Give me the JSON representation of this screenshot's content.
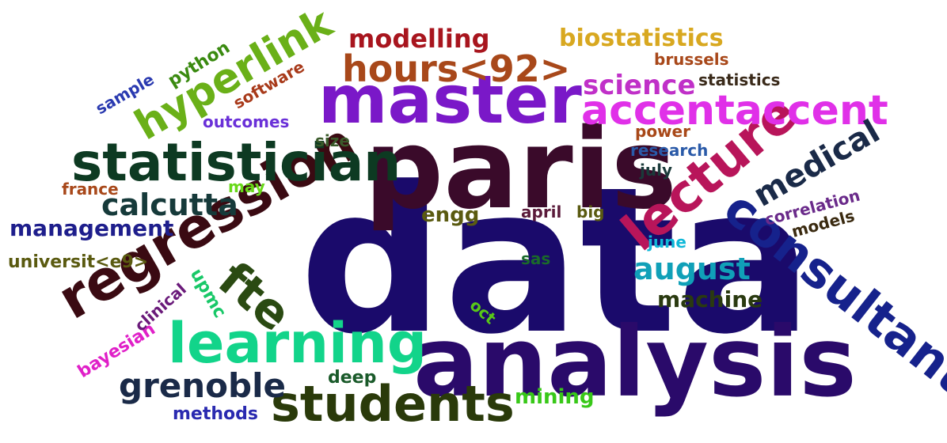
{
  "words": [
    {
      "text": "data",
      "color": "#1a0a6b"
    },
    {
      "text": "analysis",
      "color": "#2a0a6a"
    },
    {
      "text": "paris",
      "color": "#3a0a2a"
    },
    {
      "text": "master",
      "color": "#7a18c8"
    },
    {
      "text": "regression",
      "color": "#3a0a12"
    },
    {
      "text": "statistician",
      "color": "#0d3a22"
    },
    {
      "text": "learning",
      "color": "#12d48a"
    },
    {
      "text": "consultant",
      "color": "#16228c"
    },
    {
      "text": "lecture",
      "color": "#b8155a"
    },
    {
      "text": "students",
      "color": "#2a3a0a"
    },
    {
      "text": "hours<92>",
      "color": "#a8481a"
    },
    {
      "text": "accentaccent",
      "color": "#e030e8"
    },
    {
      "text": "hyperlink",
      "color": "#6ab018"
    },
    {
      "text": "fte",
      "color": "#2a4a12"
    },
    {
      "text": "grenoble",
      "color": "#1a2a48"
    },
    {
      "text": "medical",
      "color": "#1a2a48"
    },
    {
      "text": "calcutta",
      "color": "#163a3a"
    },
    {
      "text": "science",
      "color": "#c030c8"
    },
    {
      "text": "august",
      "color": "#10a0b8"
    },
    {
      "text": "management",
      "color": "#1e1e8c"
    },
    {
      "text": "modelling",
      "color": "#a8151e"
    },
    {
      "text": "biostatistics",
      "color": "#d8a820"
    },
    {
      "text": "machine",
      "color": "#2a3a10"
    },
    {
      "text": "engg",
      "color": "#5a5a10"
    },
    {
      "text": "mining",
      "color": "#38c818"
    },
    {
      "text": "methods",
      "color": "#2a2ab0"
    },
    {
      "text": "deep",
      "color": "#1a5a2a"
    },
    {
      "text": "bayesian",
      "color": "#e020c8"
    },
    {
      "text": "clinical",
      "color": "#6a1a7a"
    },
    {
      "text": "upmc",
      "color": "#18c868"
    },
    {
      "text": "oct",
      "color": "#58c818"
    },
    {
      "text": "sas",
      "color": "#1a6a2a"
    },
    {
      "text": "universit<e9>",
      "color": "#5a5a10"
    },
    {
      "text": "france",
      "color": "#a8481a"
    },
    {
      "text": "may",
      "color": "#68d818"
    },
    {
      "text": "size",
      "color": "#3a5a2a"
    },
    {
      "text": "outcomes",
      "color": "#6a30d8"
    },
    {
      "text": "software",
      "color": "#a83a1a"
    },
    {
      "text": "python",
      "color": "#3a8a10"
    },
    {
      "text": "sample",
      "color": "#2a3ab0"
    },
    {
      "text": "statistics",
      "color": "#3a2a1a"
    },
    {
      "text": "brussels",
      "color": "#a8481a"
    },
    {
      "text": "power",
      "color": "#a84818"
    },
    {
      "text": "research",
      "color": "#2a5aa8"
    },
    {
      "text": "july",
      "color": "#1a3a3a"
    },
    {
      "text": "april",
      "color": "#5a1a3a"
    },
    {
      "text": "big",
      "color": "#5a5a10"
    },
    {
      "text": "june",
      "color": "#10b8d8"
    },
    {
      "text": "correlation",
      "color": "#6a2a8a"
    },
    {
      "text": "models",
      "color": "#3a2a10"
    }
  ]
}
